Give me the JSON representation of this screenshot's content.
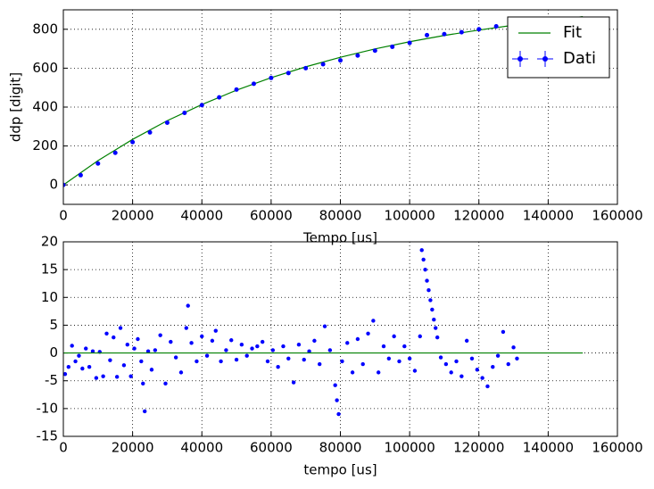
{
  "chart_data": [
    {
      "type": "line",
      "ylabel": "ddp [digit]",
      "xlabel": "Tempo [us]",
      "xlim": [
        0,
        160000
      ],
      "xticks": [
        0,
        20000,
        40000,
        60000,
        80000,
        100000,
        120000,
        140000,
        160000
      ],
      "ylim": [
        -100,
        900
      ],
      "yticks": [
        0,
        200,
        400,
        600,
        800
      ],
      "grid": true,
      "legend": "upper right",
      "series": [
        {
          "name": "Fit",
          "style": "line",
          "color": "#008000",
          "x": [
            0,
            10000,
            20000,
            30000,
            40000,
            50000,
            60000,
            70000,
            80000,
            90000,
            100000,
            110000,
            120000,
            130000,
            140000,
            150000
          ],
          "values": [
            0,
            125,
            234,
            330,
            413,
            487,
            551,
            607,
            656,
            699,
            736,
            768,
            796,
            821,
            843,
            865
          ]
        },
        {
          "name": "Dati",
          "style": "errorbar",
          "color": "#0000ff",
          "yerr": 10,
          "x": [
            0,
            5000,
            10000,
            15000,
            20000,
            25000,
            30000,
            35000,
            40000,
            45000,
            50000,
            55000,
            60000,
            65000,
            70000,
            75000,
            80000,
            85000,
            90000,
            95000,
            100000,
            105000,
            110000,
            115000,
            120000,
            125000,
            130000
          ],
          "values": [
            0,
            50,
            110,
            165,
            220,
            270,
            320,
            370,
            410,
            450,
            490,
            520,
            550,
            575,
            600,
            620,
            640,
            665,
            690,
            710,
            730,
            770,
            775,
            785,
            800,
            815,
            830
          ]
        }
      ]
    },
    {
      "type": "line",
      "xlabel": "tempo [us]",
      "xlim": [
        0,
        160000
      ],
      "xticks": [
        0,
        20000,
        40000,
        60000,
        80000,
        100000,
        120000,
        140000,
        160000
      ],
      "ylim": [
        -15,
        20
      ],
      "yticks": [
        -15,
        -10,
        -5,
        0,
        5,
        10,
        15,
        20
      ],
      "grid": true,
      "series": [
        {
          "style": "markers",
          "color": "#0000ff",
          "x": [
            500,
            1500,
            2500,
            3500,
            4500,
            5500,
            6500,
            7500,
            8500,
            9500,
            10500,
            11500,
            12500,
            13500,
            14500,
            15500,
            16500,
            17500,
            18500,
            19500,
            20500,
            21500,
            22500,
            23000,
            23500,
            24500,
            25500,
            26500,
            28000,
            29500,
            31000,
            32500,
            34000,
            35500,
            36000,
            37000,
            38500,
            40000,
            41500,
            43000,
            44000,
            45500,
            47000,
            48500,
            50000,
            51500,
            53000,
            54500,
            56000,
            57500,
            59000,
            60500,
            62000,
            63500,
            65000,
            66500,
            68000,
            69500,
            71000,
            72500,
            74000,
            75500,
            77000,
            78500,
            79000,
            79500,
            80500,
            82000,
            83500,
            85000,
            86500,
            88000,
            89500,
            91000,
            92500,
            94000,
            95500,
            97000,
            98500,
            100000,
            101500,
            103000,
            103500,
            104000,
            104500,
            105000,
            105500,
            106000,
            106500,
            107000,
            107500,
            108000,
            109000,
            110500,
            112000,
            113500,
            115000,
            116500,
            118000,
            119500,
            121000,
            122500,
            124000,
            125500,
            127000,
            128500,
            130000,
            131000
          ],
          "values": [
            -3.8,
            -2.5,
            1.3,
            -1.5,
            -0.5,
            -2.8,
            0.8,
            -2.5,
            0.3,
            -4.5,
            0.2,
            -4.2,
            3.5,
            -1.3,
            2.8,
            -4.3,
            4.5,
            -2.2,
            1.5,
            -4.2,
            0.8,
            2.5,
            -1.5,
            -5.5,
            -10.5,
            0.3,
            -3,
            0.5,
            3.2,
            -5.5,
            2,
            -0.8,
            -3.5,
            4.5,
            8.5,
            1.8,
            -1.5,
            3,
            -0.5,
            2.2,
            4,
            -1.5,
            0.5,
            2.3,
            -1.2,
            1.5,
            -0.5,
            0.8,
            1.2,
            2,
            -1.5,
            0.5,
            -2.5,
            1.2,
            -1,
            -5.3,
            1.5,
            -1.2,
            0.3,
            2.2,
            -2,
            4.8,
            0.5,
            -5.8,
            -8.5,
            -11,
            -1.5,
            1.8,
            -3.5,
            2.5,
            -2,
            3.5,
            5.8,
            -3.5,
            1.2,
            -1,
            3,
            -1.5,
            1.2,
            -1,
            -3.2,
            3,
            18.5,
            16.8,
            15,
            13,
            11.3,
            9.5,
            7.8,
            6,
            4.5,
            2.8,
            -0.8,
            -2,
            -3.5,
            -1.5,
            -4.2,
            2.2,
            -1,
            -3,
            -4.5,
            -6,
            -2.5,
            -0.5,
            3.8,
            -2,
            1,
            -1
          ]
        },
        {
          "style": "line",
          "color": "#008000",
          "x": [
            0,
            150000
          ],
          "values": [
            0,
            0
          ]
        }
      ]
    }
  ]
}
